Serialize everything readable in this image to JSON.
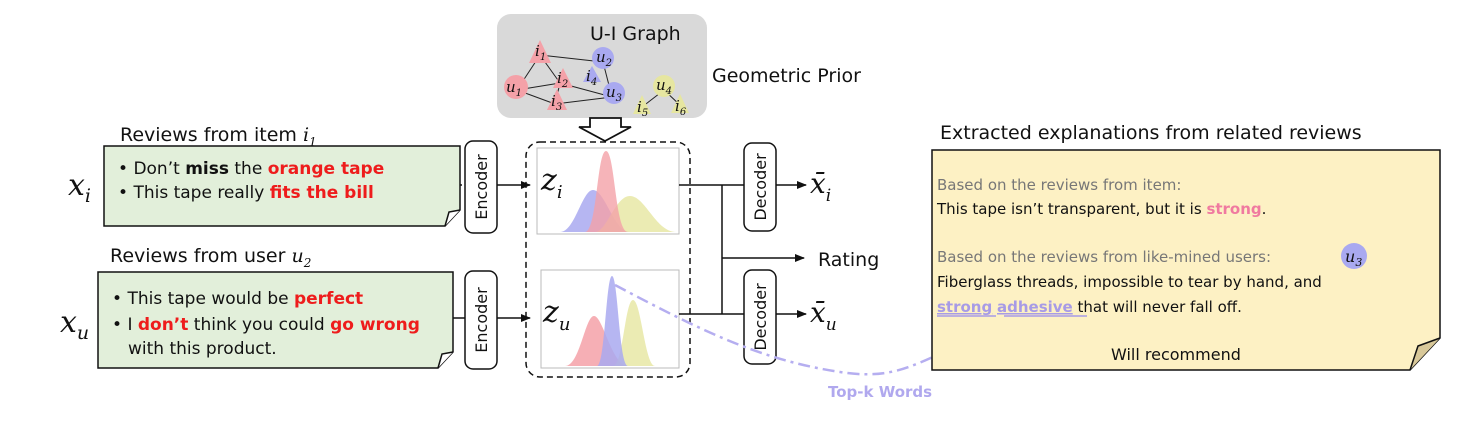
{
  "graph": {
    "title": "U-I Graph",
    "prior_label": "Geometric Prior",
    "nodes": [
      {
        "id": "i1",
        "base": "i",
        "sub": "1",
        "kind": "item"
      },
      {
        "id": "u2",
        "base": "u",
        "sub": "2",
        "kind": "user"
      },
      {
        "id": "i4",
        "base": "i",
        "sub": "4",
        "kind": "item-blue"
      },
      {
        "id": "i2",
        "base": "i",
        "sub": "2",
        "kind": "item"
      },
      {
        "id": "u1",
        "base": "u",
        "sub": "1",
        "kind": "user-red"
      },
      {
        "id": "u3",
        "base": "u",
        "sub": "3",
        "kind": "user"
      },
      {
        "id": "i3",
        "base": "i",
        "sub": "3",
        "kind": "item"
      },
      {
        "id": "u4",
        "base": "u",
        "sub": "4",
        "kind": "yellow"
      },
      {
        "id": "i5",
        "base": "i",
        "sub": "5",
        "kind": "yellow"
      },
      {
        "id": "i6",
        "base": "i",
        "sub": "6",
        "kind": "yellow"
      }
    ]
  },
  "item_reviews": {
    "title": "Reviews from item ",
    "title_var": "i",
    "title_sub": "1",
    "input_var": "x",
    "input_sub": "i",
    "line1": {
      "p1": "Don’t ",
      "p2": "miss",
      "p3": " the ",
      "p4": "orange tape"
    },
    "line2": {
      "p1": "This tape really ",
      "p2": "fits the bill"
    }
  },
  "user_reviews": {
    "title": "Reviews from user ",
    "title_var": "u",
    "title_sub": "2",
    "input_var": "x",
    "input_sub": "u",
    "line1": {
      "p1": "This tape would be ",
      "p2": "perfect"
    },
    "line2": {
      "p1": "I ",
      "p2": "don’t",
      "p3": " think you could ",
      "p4": "go wrong"
    },
    "line3": "with this product."
  },
  "labels": {
    "encoder": "Encoder",
    "decoder": "Decoder",
    "rating": "Rating",
    "z_item": {
      "base": "z",
      "sub": "i"
    },
    "z_user": {
      "base": "z",
      "sub": "u"
    },
    "xbar_item": {
      "base": "x̄",
      "sub": "i"
    },
    "xbar_user": {
      "base": "x̄",
      "sub": "u"
    },
    "topk": "Top-k Words"
  },
  "explanations": {
    "title": "Extracted explanations from related reviews",
    "item_intro": "Based on the reviews from item:",
    "item_sentence": {
      "p1": "This tape isn’t transparent, but it is ",
      "p2": "strong",
      "p3": "."
    },
    "user_intro": "Based on the reviews from like-mined users:",
    "user_badge": {
      "base": "u",
      "sub": "3"
    },
    "user_line1": "Fiberglass threads, impossible to tear by hand, and",
    "user_line2": {
      "p1": "strong",
      "p2": " ",
      "p3": "adhesive",
      "p4": " that will never fall off."
    },
    "conclusion": "Will recommend"
  },
  "colors": {
    "green_box": "#e2efda",
    "yellow_note": "#fdf1c4",
    "gray_panel": "#d9d9d9",
    "red_dist": "#f4a1a8",
    "blue_dist": "#a9a9f0",
    "yellow_dist": "#e6e6a0",
    "highlight_red": "#ee1c1c",
    "highlight_pink": "#f07aa0",
    "highlight_lavender": "#a79be6"
  }
}
